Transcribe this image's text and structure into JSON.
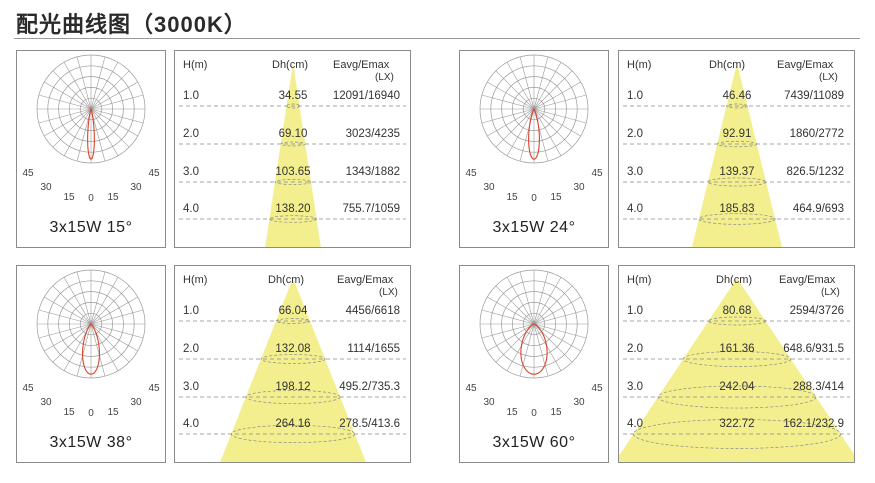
{
  "title": "配光曲线图（3000K）",
  "beam_color": "#f3ef8f",
  "curve_color": "#d9452c",
  "grid_color": "#9a9a9a",
  "angle_labels": [
    "45",
    "30",
    "15",
    "0",
    "15",
    "30",
    "45"
  ],
  "headers": {
    "h": "H(m)",
    "dh": "Dh(cm)",
    "eavg": "Eavg/Emax",
    "unit": "(LX)"
  },
  "panels": [
    {
      "label": "3x15W 15°",
      "beam_angle": 15,
      "rows": [
        {
          "h": "1.0",
          "dh": "34.55",
          "e": "12091/16940"
        },
        {
          "h": "2.0",
          "dh": "69.10",
          "e": "3023/4235"
        },
        {
          "h": "3.0",
          "dh": "103.65",
          "e": "1343/1882"
        },
        {
          "h": "4.0",
          "dh": "138.20",
          "e": "755.7/1059"
        }
      ]
    },
    {
      "label": "3x15W 24°",
      "beam_angle": 24,
      "rows": [
        {
          "h": "1.0",
          "dh": "46.46",
          "e": "7439/11089"
        },
        {
          "h": "2.0",
          "dh": "92.91",
          "e": "1860/2772"
        },
        {
          "h": "3.0",
          "dh": "139.37",
          "e": "826.5/1232"
        },
        {
          "h": "4.0",
          "dh": "185.83",
          "e": "464.9/693"
        }
      ]
    },
    {
      "label": "3x15W 38°",
      "beam_angle": 38,
      "rows": [
        {
          "h": "1.0",
          "dh": "66.04",
          "e": "4456/6618"
        },
        {
          "h": "2.0",
          "dh": "132.08",
          "e": "1114/1655"
        },
        {
          "h": "3.0",
          "dh": "198.12",
          "e": "495.2/735.3"
        },
        {
          "h": "4.0",
          "dh": "264.16",
          "e": "278.5/413.6"
        }
      ]
    },
    {
      "label": "3x15W 60°",
      "beam_angle": 60,
      "rows": [
        {
          "h": "1.0",
          "dh": "80.68",
          "e": "2594/3726"
        },
        {
          "h": "2.0",
          "dh": "161.36",
          "e": "648.6/931.5"
        },
        {
          "h": "3.0",
          "dh": "242.04",
          "e": "288.3/414"
        },
        {
          "h": "4.0",
          "dh": "322.72",
          "e": "162.1/232.9"
        }
      ]
    }
  ]
}
